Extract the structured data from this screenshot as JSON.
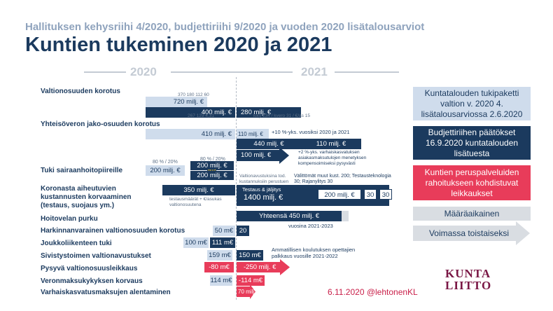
{
  "header": {
    "supertitle": "Hallituksen kehysriihi 4/2020, budjettiriihi 9/2020 ja vuoden 2020 lisätalousarviot",
    "title": "Kuntien tukeminen 2020 ja 2021"
  },
  "years": {
    "y2020": "2020",
    "y2021": "2021"
  },
  "rows": {
    "valtionosuus": {
      "label": "Valtionosuuden korotus",
      "top_note": "370 180 112 60",
      "bar1": "720 milj. €",
      "bar2": "400 milj. €",
      "bar3": "280 milj. €",
      "sub_note_a": "267 129 4,31",
      "sub_note_b": "kiky 234 / kvero 31 / €/as 15"
    },
    "yhteisovero": {
      "label": "Yhteisöveron jako-osuuden korotus",
      "bar1": "410 milj. €",
      "bar2": "110 milj. €",
      "note2": "+10 %-yks. vuosiksi 2020 ja 2021",
      "bar3": "440 milj. €",
      "bar4": "110 milj. €",
      "bar5": "100 milj. €",
      "note5": "+2 %-yks. varhaiskasvatuksen asiakasmaksutulojen menetyksen kompensoimiseksi pysyvästi"
    },
    "sairaanhoitopiirit": {
      "label": "Tuki sairaanhoitopiireille",
      "pct_a": "80 % / 20%",
      "pct_b": "80 % / 20%",
      "bar1": "200 milj. €",
      "bar2": "200 milj. €",
      "small_tag": "muut",
      "bar3": "200 milj. €",
      "note_center": "Valtionavustuksina tod. kustannuksiin perustuen",
      "note_right": "Välittömät muut kust. 200; Testausteknologia 30; Rajanylitys 30"
    },
    "koronakustannukset": {
      "label": "Koronasta aiheutuvien kustannusten korvaaminen (testaus, suojaus ym.)",
      "bar1": "350 milj. €",
      "note1": "testausmäärät + €/asukas valtionosuutena",
      "bar2_top": "Testaus & jäljitys",
      "bar2": "1400 milj. €",
      "box1": "200 milj. €",
      "box2": "30",
      "box3": "30"
    },
    "hoitovelka": {
      "label": "Hoitovelan purku",
      "bar": "Yhteensä 450 milj. €",
      "note": "vuosina 2021-2023"
    },
    "harkinnanvarainen": {
      "label": "Harkinnanvarainen valtionosuuden korotus",
      "bar1": "50 m€",
      "bar2": "20"
    },
    "joukkoliikenne": {
      "label": "Joukkoliikenteen tuki",
      "bar1": "100 m€",
      "bar2": "111 m€"
    },
    "sivistystoimi": {
      "label": "Sivistystoimen valtionavustukset",
      "bar1": "159 m€",
      "bar2": "150 m€",
      "note": "Ammatillisen koulutuksen opettajien palkkaus vuosille 2021-2022"
    },
    "valtionosuusleikkaus": {
      "label": "Pysyvä valtionosuusleikkaus",
      "bar1": "-80 m€",
      "bar2": "-250 milj. €"
    },
    "verokorvaus": {
      "label": "Veronmaksukykyksen korvaus",
      "bar1": "114 m€",
      "bar2": "-114 m€"
    },
    "varhaiskasvatus": {
      "label": "Varhaiskasvatusmaksujen alentaminen",
      "bar1": "70 milj."
    }
  },
  "legend": {
    "light": "Kuntatalouden tukipaketti valtion v. 2020 4. lisätalousarviossa 2.6.2020",
    "dark": "Budjettiriihen päätökset 16.9.2020 kuntatalouden lisätuesta",
    "red": "Kuntien peruspalveluiden rahoitukseen kohdistuvat leikkaukset",
    "fixed": "Määräaikainen",
    "ongoing": "Voimassa toistaiseksi"
  },
  "footer": {
    "date": "6.11.2020 @lehtonenKL",
    "logo_line1": "KUNTA",
    "logo_line2": "LIITTO"
  },
  "colors": {
    "navy": "#1b3a5e",
    "light_blue": "#cfdcec",
    "red": "#e83c5a",
    "grey": "#d9dde2",
    "maroon": "#7a1745"
  }
}
